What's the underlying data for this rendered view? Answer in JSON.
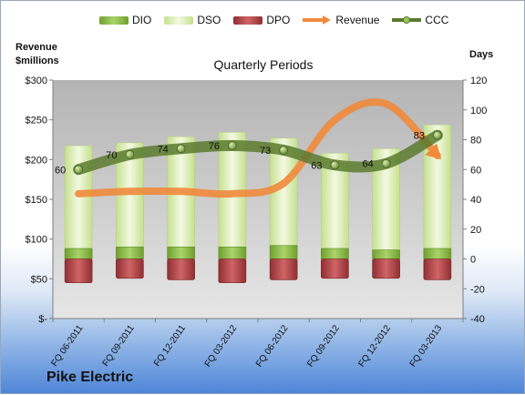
{
  "chart_data": {
    "type": "bar",
    "title": "Quarterly Periods",
    "company": "Pike Electric",
    "left_axis_label": "Revenue $millions",
    "left_axis_label_lines": [
      "Revenue",
      "$millions"
    ],
    "right_axis_label": "Days",
    "categories": [
      "FQ 06-2011",
      "FQ 09-2011",
      "FQ 12-2011",
      "FQ 03-2012",
      "FQ 06-2012",
      "FQ 09-2012",
      "FQ 12-2012",
      "FQ 03-2013"
    ],
    "left_ylim": [
      0,
      300
    ],
    "left_ticks": [
      "$-",
      "$50",
      "$100",
      "$150",
      "$200",
      "$250",
      "$300"
    ],
    "left_tick_values": [
      0,
      50,
      100,
      150,
      200,
      250,
      300
    ],
    "right_ylim": [
      -40,
      120
    ],
    "right_ticks": [
      "-40",
      "-20",
      "0",
      "20",
      "40",
      "60",
      "80",
      "100",
      "120"
    ],
    "right_tick_values": [
      -40,
      -20,
      0,
      20,
      40,
      60,
      80,
      100,
      120
    ],
    "series": [
      {
        "name": "DIO",
        "axis": "right",
        "kind": "bar",
        "values": [
          7,
          8,
          8,
          8,
          9,
          7,
          6,
          7
        ],
        "color": "#8cbd45"
      },
      {
        "name": "DSO",
        "axis": "right",
        "kind": "bar",
        "values": [
          69,
          70,
          74,
          77,
          72,
          64,
          68,
          83
        ],
        "color": "#dcedb5"
      },
      {
        "name": "DPO",
        "axis": "right",
        "kind": "bar",
        "values": [
          -16,
          -13,
          -14,
          -16,
          -14,
          -13,
          -13,
          -14
        ],
        "color": "#b94a4d"
      },
      {
        "name": "Revenue",
        "axis": "left",
        "kind": "line",
        "values": [
          157,
          160,
          160,
          157,
          170,
          250,
          270,
          205
        ],
        "color": "#f08a3c"
      },
      {
        "name": "CCC",
        "axis": "right",
        "kind": "line",
        "values": [
          60,
          70,
          74,
          76,
          73,
          63,
          64,
          83
        ],
        "color": "#5b7a2e"
      }
    ],
    "ccc_labels": [
      "60",
      "70",
      "74",
      "76",
      "73",
      "63",
      "64",
      "83"
    ],
    "legend_position": "top",
    "grid": false
  }
}
